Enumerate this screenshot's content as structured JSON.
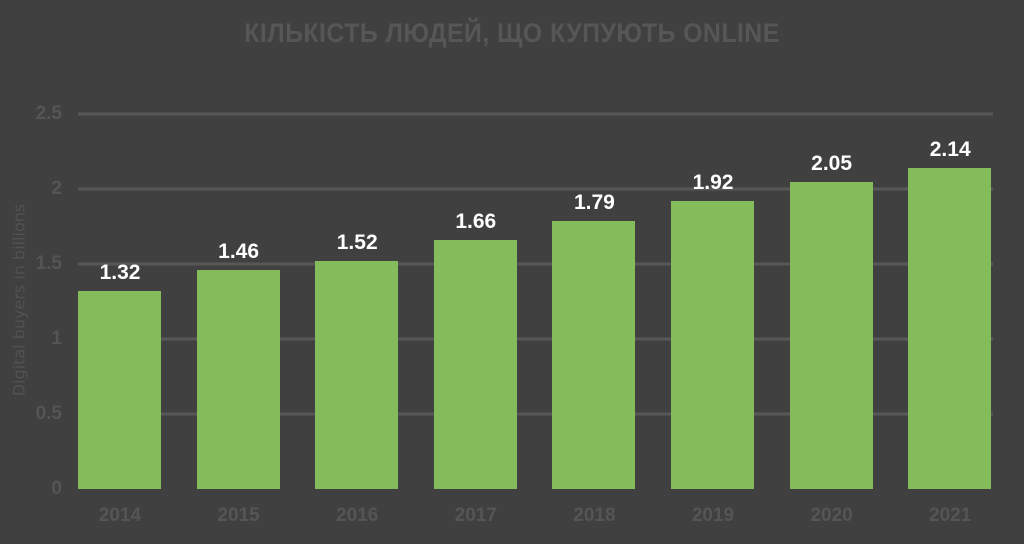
{
  "chart_data": {
    "type": "bar",
    "title": "КІЛЬКІСТЬ ЛЮДЕЙ, ЩО КУПУЮТЬ ONLINE",
    "xlabel": "",
    "ylabel": "Digital buyers in billions",
    "categories": [
      "2014",
      "2015",
      "2016",
      "2017",
      "2018",
      "2019",
      "2020",
      "2021"
    ],
    "values": [
      1.32,
      1.46,
      1.52,
      1.66,
      1.79,
      1.92,
      2.05,
      2.14
    ],
    "data_labels": [
      "1.32",
      "1.46",
      "1.52",
      "1.66",
      "1.79",
      "1.92",
      "2.05",
      "2.14"
    ],
    "yticks": [
      "0",
      "0.5",
      "1",
      "1.5",
      "2",
      "2.5"
    ],
    "ylim": [
      0,
      2.5
    ],
    "grid": true,
    "legend": null,
    "colors": {
      "background": "#404040",
      "bar": "#85bc5b",
      "grid": "#575757",
      "axis_text": "#555555",
      "data_label": "#ffffff"
    }
  }
}
